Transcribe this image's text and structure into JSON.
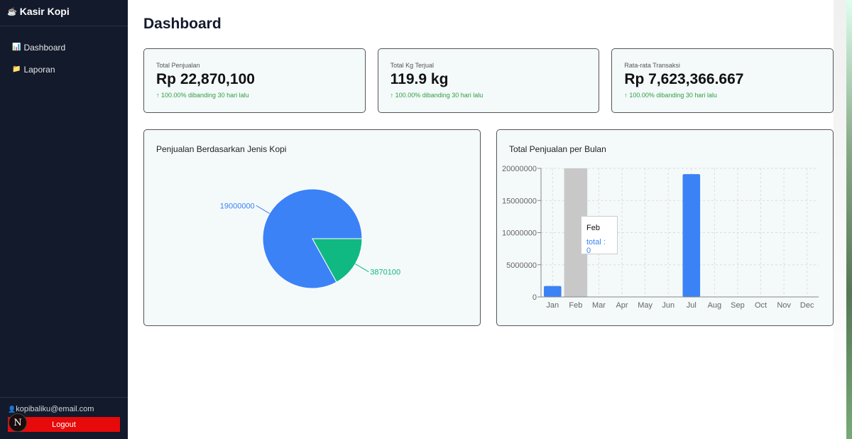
{
  "sidebar": {
    "brand": "Kasir Kopi",
    "brand_icon": "☕",
    "items": [
      {
        "icon": "📊",
        "label": "Dashboard"
      },
      {
        "icon": "📁",
        "label": "Laporan"
      }
    ],
    "user_icon": "👤",
    "email": "kopibaliku@email.com",
    "logout": "Logout",
    "badge": "N"
  },
  "page_title": "Dashboard",
  "cards": [
    {
      "label": "Total Penjualan",
      "value": "Rp 22,870,100",
      "delta": "↑ 100.00% dibanding 30 hari lalu"
    },
    {
      "label": "Total Kg Terjual",
      "value": "119.9 kg",
      "delta": "↑ 100.00% dibanding 30 hari lalu"
    },
    {
      "label": "Rata-rata Transaksi",
      "value": "Rp 7,623,366.667",
      "delta": "↑ 100.00% dibanding 30 hari lalu"
    }
  ],
  "chart_data": [
    {
      "type": "pie",
      "title": "Penjualan Berdasarkan Jenis Kopi",
      "slices": [
        {
          "value": 19000000,
          "label": "19000000",
          "color": "#3b82f6"
        },
        {
          "value": 3870100,
          "label": "3870100",
          "color": "#10b981"
        }
      ]
    },
    {
      "type": "bar",
      "title": "Total Penjualan per Bulan",
      "categories": [
        "Jan",
        "Feb",
        "Mar",
        "Apr",
        "May",
        "Jun",
        "Jul",
        "Aug",
        "Sep",
        "Oct",
        "Nov",
        "Dec"
      ],
      "values": [
        1700000,
        0,
        0,
        0,
        0,
        0,
        19100000,
        0,
        0,
        0,
        0,
        0
      ],
      "yticks": [
        "0",
        "5000000",
        "10000000",
        "15000000",
        "20000000"
      ],
      "ylim": [
        0,
        20000000
      ],
      "color": "#3b82f6",
      "highlight": "Feb",
      "tooltip": {
        "label": "Feb",
        "value": "total : 0"
      }
    }
  ]
}
